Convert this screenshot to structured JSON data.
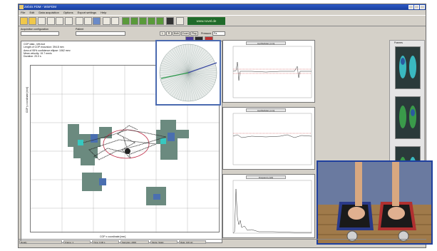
{
  "window": {
    "title": "Zebris FDM - WinFDM"
  },
  "menu": [
    "File",
    "Edit",
    "Data acquisition",
    "Options",
    "Export settings",
    "Help"
  ],
  "brand": {
    "logo_text": "www.novel.de"
  },
  "params": {
    "config_label": "Acquisition configuration",
    "config_value": "",
    "patient_label": "Patient",
    "patient_value": "",
    "buttons": [
      "L",
      "R",
      "Both",
      "Zoom",
      "Play"
    ],
    "legend_label": "Pressure",
    "legend_value": "Pa"
  },
  "cop": {
    "title": "COP data - left-foot",
    "info": [
      "Length of COP excursion: 394.8 mm",
      "Area of 95% confidence ellipse: 1062 mm²",
      "Mean velocity: 19.7 mm/s",
      "Duration: 20.0 s"
    ],
    "ylabel": "COP y coordinate [mm]",
    "xlabel": "COP x coordinate [mm]"
  },
  "graphs": [
    {
      "title": "Ap-Mediolat. [mm]"
    },
    {
      "title": "Ap-Mediolat. [mm]"
    },
    {
      "title": "Frequency [Hz]"
    }
  ],
  "thumbs": {
    "title": "Frames"
  },
  "status": [
    "Ready",
    "Frame: 1",
    "Time: 0.00 s",
    "Samples: 2000",
    "Mode: Static",
    "Rate: 100 Hz"
  ],
  "colors": {
    "heat_low": "#6b8a7f",
    "heat_mid": "#4a6fb0",
    "heat_high": "#37c8c0",
    "trace": "#222222",
    "ellipse": "#c0304a",
    "polar_green": "#2a9a4a",
    "polar_blue": "#3a4aa0",
    "graph_line_red": "#cc3333",
    "graph_line": "#333333"
  }
}
